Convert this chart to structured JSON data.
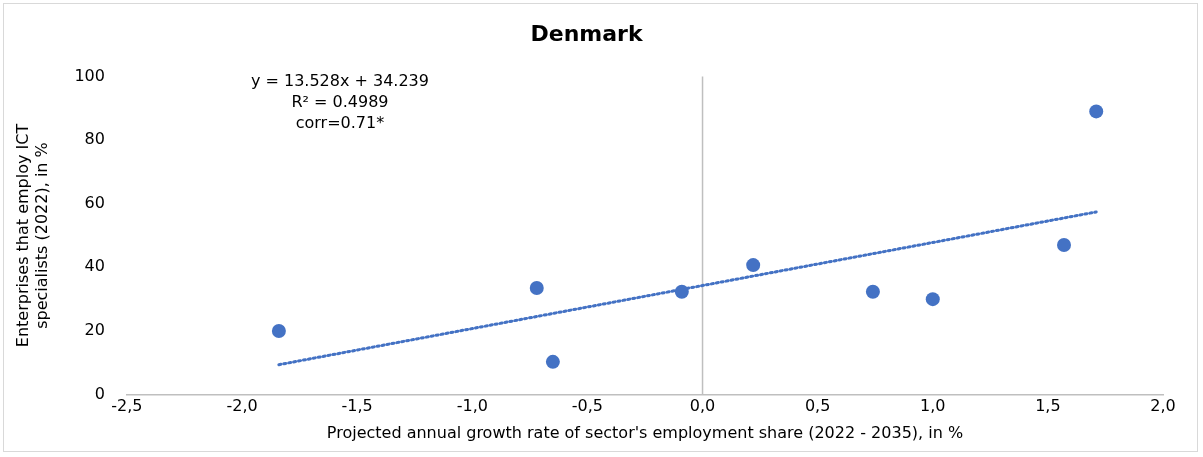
{
  "chart_data": {
    "type": "scatter",
    "title": "Denmark",
    "xlabel": "Projected annual growth rate of sector's employment share (2022 - 2035), in %",
    "ylabel": "Enterprises that employ ICT specialists (2022), in %",
    "series": [
      {
        "type": "scatter",
        "color": "#4472c4",
        "x": [
          -1.84,
          -0.72,
          -0.65,
          -0.09,
          0.22,
          0.74,
          1.0,
          1.57,
          1.71
        ],
        "values": [
          20,
          33.5,
          10.3,
          32.3,
          40.7,
          32.3,
          30,
          47,
          89
        ],
        "marker": "circle"
      },
      {
        "type": "line",
        "color": "#4472c4",
        "x": [
          -1.84,
          1.71
        ],
        "values": [
          9.4,
          57.4
        ],
        "line_style": "dotted",
        "marker": "none"
      }
    ],
    "xlim": [
      -2.5,
      2.0
    ],
    "xticks": [
      {
        "value": -2.5,
        "label": "-2,5"
      },
      {
        "value": -2.0,
        "label": "-2,0"
      },
      {
        "value": -1.5,
        "label": "-1,5"
      },
      {
        "value": -1.0,
        "label": "-1,0"
      },
      {
        "value": -0.5,
        "label": "-0,5"
      },
      {
        "value": 0,
        "label": "0,0"
      },
      {
        "value": 0.5,
        "label": "0,5"
      },
      {
        "value": 1.0,
        "label": "1,0"
      },
      {
        "value": 1.5,
        "label": "1,5"
      },
      {
        "value": 2.0,
        "label": "2,0"
      }
    ],
    "ylim": [
      0,
      100
    ],
    "yticks": [
      0,
      20,
      40,
      60,
      80,
      100
    ],
    "ref_lines": [
      {
        "axis": "x",
        "value": 0,
        "color": "#bfbfbf"
      }
    ],
    "annotations": [
      "y = 13.528x + 34.239",
      "R² = 0.4989",
      "corr=0.71*"
    ],
    "grid": false,
    "legend": false
  }
}
